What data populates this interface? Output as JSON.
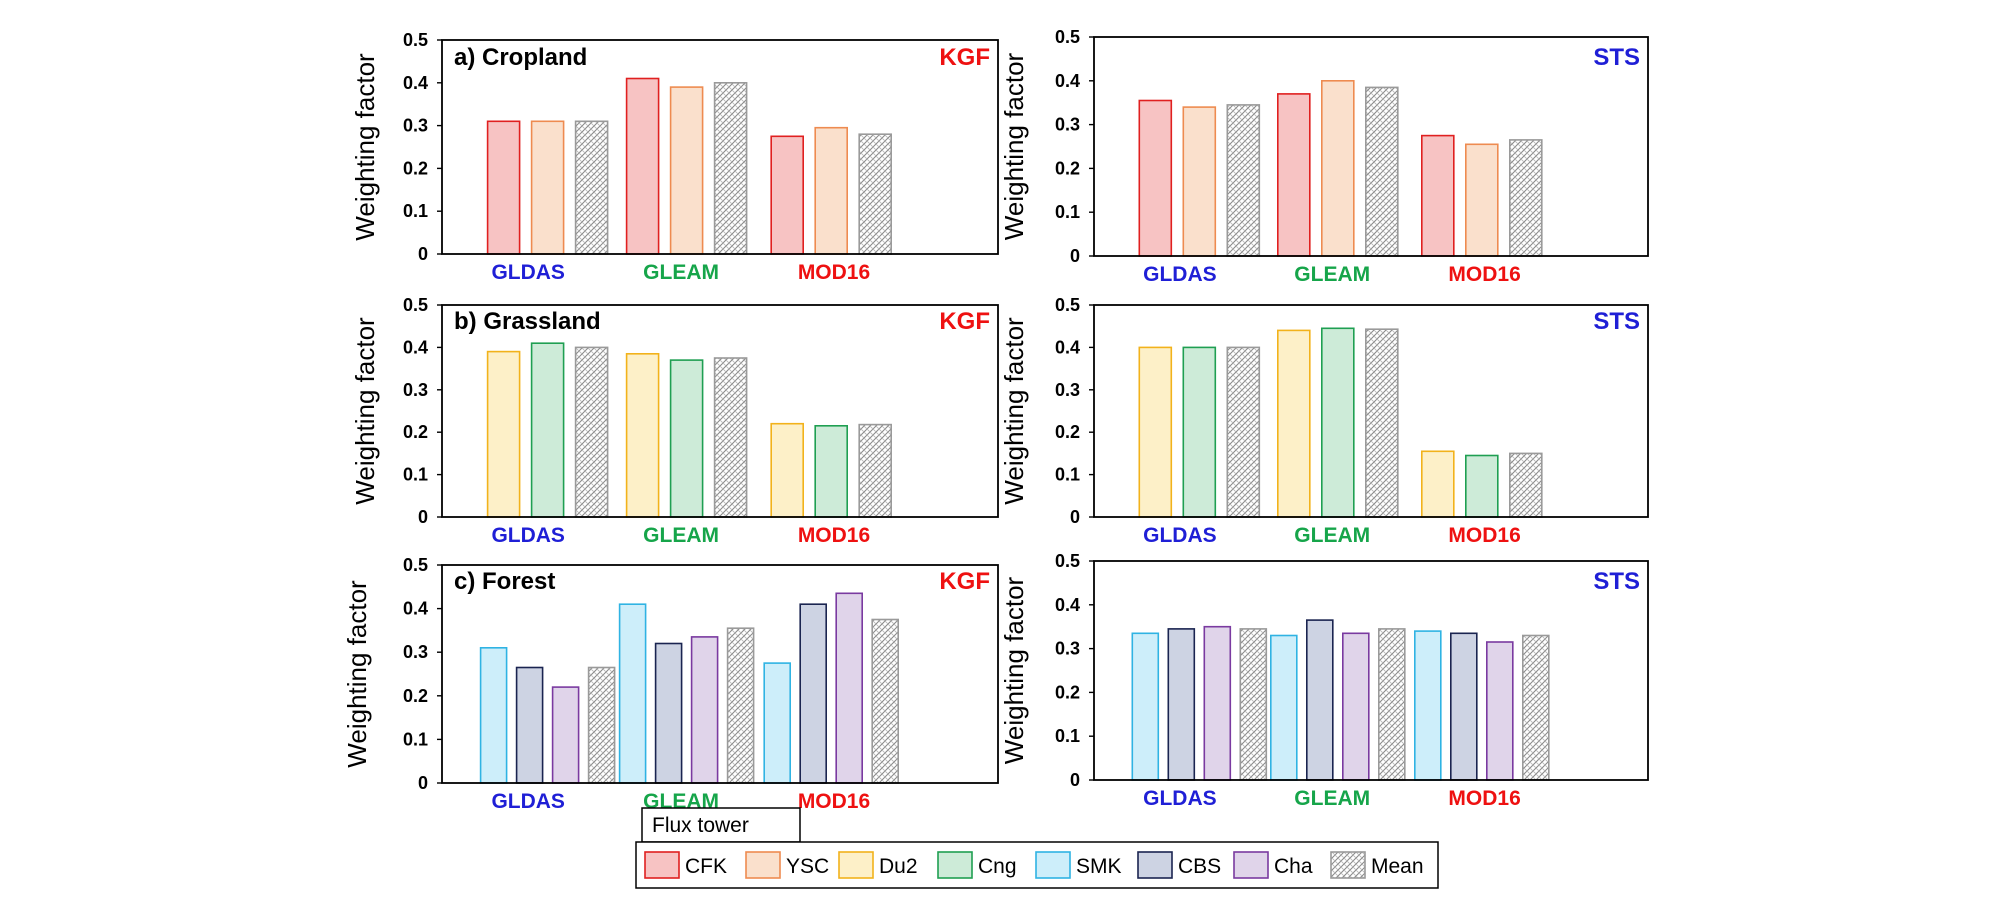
{
  "figure": {
    "ylabel": "Weighting factor",
    "legend_title": "Flux tower"
  },
  "colors": {
    "text_blue": "#1f1fd6",
    "text_green": "#16a54a",
    "text_red": "#ee1111"
  },
  "legend": [
    {
      "name": "CFK",
      "fill": "#f7c3c3",
      "stroke": "#e02020"
    },
    {
      "name": "YSC",
      "fill": "#fae0cc",
      "stroke": "#ee8b50"
    },
    {
      "name": "Du2",
      "fill": "#fdf0c8",
      "stroke": "#f2b21b"
    },
    {
      "name": "Cng",
      "fill": "#cdebd8",
      "stroke": "#1f9f52"
    },
    {
      "name": "SMK",
      "fill": "#cdeefa",
      "stroke": "#2fb3e3"
    },
    {
      "name": "CBS",
      "fill": "#cdd3e3",
      "stroke": "#1a2450"
    },
    {
      "name": "Cha",
      "fill": "#e0d4ea",
      "stroke": "#7a3aa0"
    },
    {
      "name": "Mean",
      "fill": "pattern",
      "stroke": "#9a9a9a"
    }
  ],
  "chart_data": [
    {
      "type": "bar",
      "panel_label": "a) Cropland",
      "method": "KGF",
      "method_color": "#ee1111",
      "categories": [
        "GLDAS",
        "GLEAM",
        "MOD16"
      ],
      "category_colors": [
        "#1f1fd6",
        "#16a54a",
        "#ee1111"
      ],
      "yticks": [
        "0",
        "0.1",
        "0.2",
        "0.3",
        "0.4",
        "0.5"
      ],
      "ylim": [
        0,
        0.5
      ],
      "ylabel": "Weighting factor",
      "series": [
        {
          "name": "CFK",
          "values": [
            0.31,
            0.41,
            0.275
          ]
        },
        {
          "name": "YSC",
          "values": [
            0.31,
            0.39,
            0.295
          ]
        },
        {
          "name": "Mean",
          "values": [
            0.31,
            0.4,
            0.28
          ]
        }
      ]
    },
    {
      "type": "bar",
      "panel_label": "",
      "method": "STS",
      "method_color": "#1f1fd6",
      "categories": [
        "GLDAS",
        "GLEAM",
        "MOD16"
      ],
      "category_colors": [
        "#1f1fd6",
        "#16a54a",
        "#ee1111"
      ],
      "yticks": [
        "0",
        "0.1",
        "0.2",
        "0.3",
        "0.4",
        "0.5"
      ],
      "ylim": [
        0,
        0.5
      ],
      "ylabel": "Weighting factor",
      "series": [
        {
          "name": "CFK",
          "values": [
            0.355,
            0.37,
            0.275
          ]
        },
        {
          "name": "YSC",
          "values": [
            0.34,
            0.4,
            0.255
          ]
        },
        {
          "name": "Mean",
          "values": [
            0.345,
            0.385,
            0.265
          ]
        }
      ]
    },
    {
      "type": "bar",
      "panel_label": "b) Grassland",
      "method": "KGF",
      "method_color": "#ee1111",
      "categories": [
        "GLDAS",
        "GLEAM",
        "MOD16"
      ],
      "category_colors": [
        "#1f1fd6",
        "#16a54a",
        "#ee1111"
      ],
      "yticks": [
        "0",
        "0.1",
        "0.2",
        "0.3",
        "0.4",
        "0.5"
      ],
      "ylim": [
        0,
        0.5
      ],
      "ylabel": "Weighting factor",
      "series": [
        {
          "name": "Du2",
          "values": [
            0.39,
            0.385,
            0.22
          ]
        },
        {
          "name": "Cng",
          "values": [
            0.41,
            0.37,
            0.215
          ]
        },
        {
          "name": "Mean",
          "values": [
            0.4,
            0.375,
            0.218
          ]
        }
      ]
    },
    {
      "type": "bar",
      "panel_label": "",
      "method": "STS",
      "method_color": "#1f1fd6",
      "categories": [
        "GLDAS",
        "GLEAM",
        "MOD16"
      ],
      "category_colors": [
        "#1f1fd6",
        "#16a54a",
        "#ee1111"
      ],
      "yticks": [
        "0",
        "0.1",
        "0.2",
        "0.3",
        "0.4",
        "0.5"
      ],
      "ylim": [
        0,
        0.5
      ],
      "ylabel": "Weighting factor",
      "series": [
        {
          "name": "Du2",
          "values": [
            0.4,
            0.44,
            0.155
          ]
        },
        {
          "name": "Cng",
          "values": [
            0.4,
            0.445,
            0.145
          ]
        },
        {
          "name": "Mean",
          "values": [
            0.4,
            0.443,
            0.15
          ]
        }
      ]
    },
    {
      "type": "bar",
      "panel_label": "c) Forest",
      "method": "KGF",
      "method_color": "#ee1111",
      "categories": [
        "GLDAS",
        "GLEAM",
        "MOD16"
      ],
      "category_colors": [
        "#1f1fd6",
        "#16a54a",
        "#ee1111"
      ],
      "yticks": [
        "0",
        "0.1",
        "0.2",
        "0.3",
        "0.4",
        "0.5"
      ],
      "ylim": [
        0,
        0.5
      ],
      "ylabel": "Weighting factor",
      "series": [
        {
          "name": "SMK",
          "values": [
            0.31,
            0.41,
            0.275
          ]
        },
        {
          "name": "CBS",
          "values": [
            0.265,
            0.32,
            0.41
          ]
        },
        {
          "name": "Cha",
          "values": [
            0.22,
            0.335,
            0.435
          ]
        },
        {
          "name": "Mean",
          "values": [
            0.265,
            0.355,
            0.375
          ]
        }
      ]
    },
    {
      "type": "bar",
      "panel_label": "",
      "method": "STS",
      "method_color": "#1f1fd6",
      "categories": [
        "GLDAS",
        "GLEAM",
        "MOD16"
      ],
      "category_colors": [
        "#1f1fd6",
        "#16a54a",
        "#ee1111"
      ],
      "yticks": [
        "0",
        "0.1",
        "0.2",
        "0.3",
        "0.4",
        "0.5"
      ],
      "ylim": [
        0,
        0.5
      ],
      "ylabel": "Weighting factor",
      "series": [
        {
          "name": "SMK",
          "values": [
            0.335,
            0.33,
            0.34
          ]
        },
        {
          "name": "CBS",
          "values": [
            0.345,
            0.365,
            0.335
          ]
        },
        {
          "name": "Cha",
          "values": [
            0.35,
            0.335,
            0.315
          ]
        },
        {
          "name": "Mean",
          "values": [
            0.345,
            0.345,
            0.33
          ]
        }
      ]
    }
  ]
}
